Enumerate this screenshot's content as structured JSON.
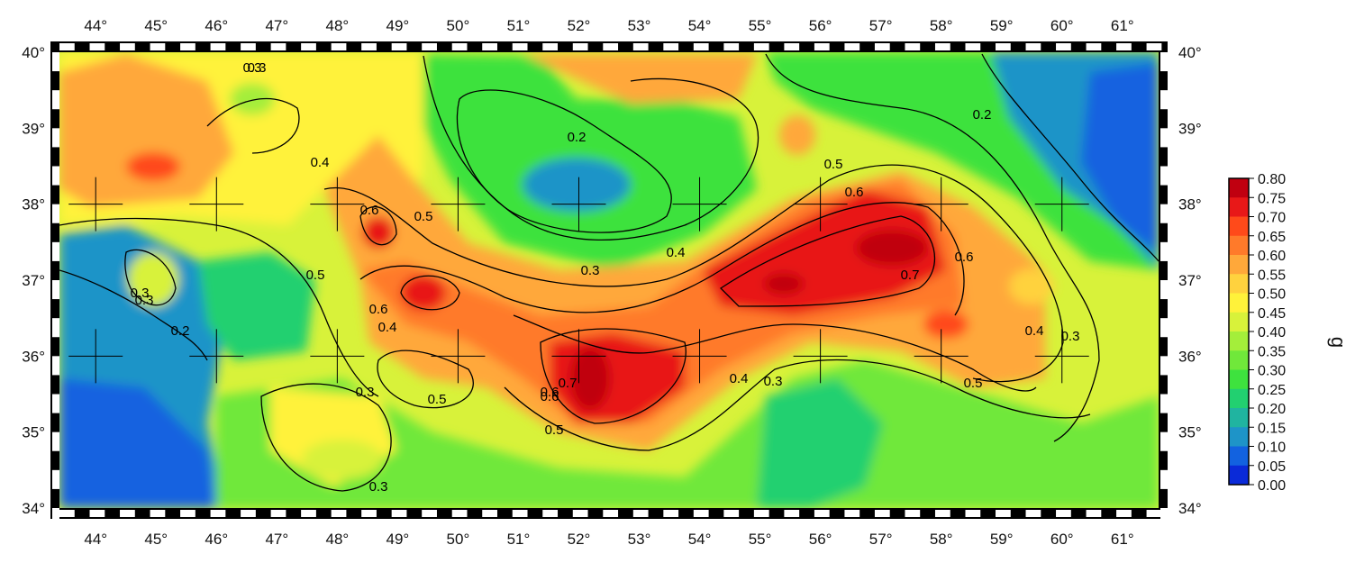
{
  "map": {
    "lon_labels": [
      "44°",
      "45°",
      "46°",
      "47°",
      "48°",
      "49°",
      "50°",
      "51°",
      "52°",
      "53°",
      "54°",
      "55°",
      "56°",
      "57°",
      "58°",
      "59°",
      "60°",
      "61°"
    ],
    "lat_labels": [
      "40°",
      "39°",
      "38°",
      "37°",
      "36°",
      "35°",
      "34°"
    ],
    "lon_range": [
      43.4,
      61.6
    ],
    "lat_range": [
      34.0,
      40.0
    ],
    "contour_labels": [
      "0.3",
      "0.4",
      "0.5",
      "0.6",
      "0.2",
      "0.3",
      "0.5",
      "0.6",
      "0.4",
      "0.3",
      "0.6",
      "0.7",
      "0.6",
      "0.5",
      "0.4",
      "0.3",
      "0.6",
      "0.2",
      "0.4",
      "0.3",
      "0.5",
      "0.3",
      "0.5",
      "0.4",
      "0.3",
      "0.7",
      "0.6",
      "0.5",
      "0.3",
      "0.2",
      "0.3"
    ]
  },
  "colorbar": {
    "unit": "g",
    "ticks": [
      "0.80",
      "0.75",
      "0.70",
      "0.65",
      "0.60",
      "0.55",
      "0.50",
      "0.45",
      "0.40",
      "0.35",
      "0.30",
      "0.25",
      "0.20",
      "0.15",
      "0.10",
      "0.05",
      "0.00"
    ],
    "colors": [
      "#c00010",
      "#e81818",
      "#ff4a1a",
      "#ff7a2a",
      "#ffa83a",
      "#ffd23e",
      "#fff23a",
      "#d8f23a",
      "#a4ee3a",
      "#70e83a",
      "#3ee23e",
      "#22d070",
      "#20b4a0",
      "#1e94c8",
      "#1262e0",
      "#0a2ad8"
    ]
  }
}
